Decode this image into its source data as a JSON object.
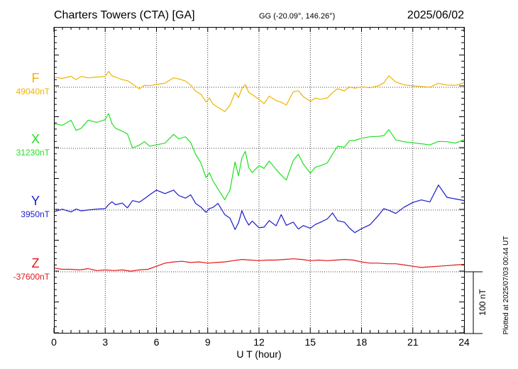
{
  "header": {
    "station": "Charters Towers (CTA)  [GA]",
    "coords": "GG (-20.09°, 146.26°)",
    "date": "2025/06/02"
  },
  "footer": {
    "plotted": "Plotted at 2025/07/03 00:44 UT",
    "scale_label": "100 nT"
  },
  "colors": {
    "F": "#f0b400",
    "X": "#22e022",
    "Y": "#1a1acc",
    "Z": "#e01818"
  },
  "chart_data": {
    "type": "line",
    "xlabel": "U T (hour)",
    "xlim": [
      0,
      24
    ],
    "xticks": [
      0,
      3,
      6,
      9,
      12,
      15,
      18,
      21,
      24
    ],
    "scale_nT": 100,
    "series": [
      {
        "key": "F",
        "name": "F",
        "baseline_label": "49040nT",
        "baseline": 49040,
        "x": [
          0,
          0.5,
          1,
          1.3,
          1.6,
          2,
          2.5,
          3,
          3.2,
          3.4,
          3.6,
          4,
          4.3,
          4.6,
          5,
          5.3,
          5.6,
          6,
          6.5,
          7,
          7.3,
          7.7,
          8,
          8.3,
          8.6,
          8.9,
          9.1,
          9.3,
          9.6,
          10,
          10.3,
          10.6,
          10.8,
          11,
          11.2,
          11.4,
          11.6,
          12,
          12.3,
          12.6,
          13,
          13.3,
          13.6,
          14,
          14.3,
          14.6,
          15,
          15.3,
          15.6,
          16,
          16.3,
          16.6,
          17,
          17.3,
          17.6,
          18,
          18.5,
          19,
          19.3,
          19.6,
          20,
          20.5,
          21,
          21.5,
          22,
          22.5,
          23,
          23.5,
          24
        ],
        "values": [
          49057,
          49055,
          49058,
          49052,
          49057,
          49055,
          49057,
          49058,
          49066,
          49058,
          49056,
          49052,
          49051,
          49046,
          49038,
          49043,
          49042,
          49044,
          49047,
          49056,
          49054,
          49050,
          49043,
          49033,
          49029,
          49017,
          49023,
          49013,
          49007,
          49000,
          49011,
          49032,
          49024,
          49038,
          49044,
          49031,
          49028,
          49021,
          49014,
          49026,
          49018,
          49015,
          49011,
          49033,
          49035,
          49025,
          49017,
          49022,
          49020,
          49023,
          49032,
          49038,
          49034,
          49040,
          49038,
          49041,
          49040,
          49043,
          49047,
          49058,
          49048,
          49044,
          49043,
          49042,
          49040,
          49046,
          49043,
          49043,
          49048
        ]
      },
      {
        "key": "X",
        "name": "X",
        "baseline_label": "31230nT",
        "baseline": 31230,
        "x": [
          0,
          0.5,
          1,
          1.3,
          1.6,
          2,
          2.5,
          3,
          3.2,
          3.4,
          3.6,
          4,
          4.3,
          4.6,
          5,
          5.3,
          5.6,
          6,
          6.5,
          7,
          7.3,
          7.7,
          8,
          8.3,
          8.6,
          8.9,
          9.1,
          9.3,
          9.6,
          10,
          10.3,
          10.6,
          10.8,
          11,
          11.2,
          11.4,
          11.6,
          12,
          12.3,
          12.6,
          13,
          13.3,
          13.6,
          14,
          14.3,
          14.6,
          15,
          15.3,
          15.6,
          16,
          16.3,
          16.6,
          17,
          17.3,
          17.6,
          18,
          18.5,
          19,
          19.3,
          19.6,
          20,
          20.5,
          21,
          21.5,
          22,
          22.5,
          23,
          23.5,
          24
        ],
        "values": [
          31270,
          31268,
          31276,
          31259,
          31262,
          31275,
          31272,
          31277,
          31287,
          31270,
          31262,
          31257,
          31253,
          31231,
          31236,
          31241,
          31233,
          31235,
          31238,
          31253,
          31246,
          31249,
          31239,
          31219,
          31206,
          31183,
          31191,
          31178,
          31164,
          31146,
          31162,
          31208,
          31186,
          31215,
          31225,
          31198,
          31190,
          31202,
          31198,
          31210,
          31196,
          31186,
          31178,
          31210,
          31221,
          31205,
          31190,
          31199,
          31201,
          31206,
          31221,
          31234,
          31232,
          31242,
          31242,
          31246,
          31249,
          31250,
          31251,
          31260,
          31243,
          31240,
          31239,
          31238,
          31236,
          31241,
          31240,
          31238,
          31244
        ]
      },
      {
        "key": "Y",
        "name": "Y",
        "baseline_label": "3950nT",
        "baseline": 3950,
        "x": [
          0,
          0.5,
          1,
          1.3,
          1.6,
          2,
          2.5,
          3,
          3.2,
          3.4,
          3.6,
          4,
          4.3,
          4.6,
          5,
          5.3,
          5.6,
          6,
          6.5,
          7,
          7.3,
          7.7,
          8,
          8.3,
          8.6,
          8.9,
          9.1,
          9.3,
          9.6,
          10,
          10.3,
          10.6,
          10.8,
          11,
          11.2,
          11.4,
          11.6,
          12,
          12.3,
          12.6,
          13,
          13.3,
          13.6,
          14,
          14.3,
          14.6,
          15,
          15.3,
          15.6,
          16,
          16.3,
          16.6,
          17,
          17.3,
          17.6,
          18,
          18.5,
          19,
          19.3,
          19.6,
          20,
          20.5,
          21,
          21.5,
          22,
          22.5,
          23,
          23.5,
          24
        ],
        "values": [
          3948,
          3952,
          3947,
          3951,
          3948,
          3950,
          3952,
          3953,
          3959,
          3963,
          3958,
          3961,
          3954,
          3966,
          3963,
          3968,
          3974,
          3982,
          3977,
          3983,
          3974,
          3969,
          3974,
          3960,
          3955,
          3947,
          3953,
          3954,
          3960,
          3942,
          3937,
          3919,
          3930,
          3949,
          3935,
          3925,
          3932,
          3922,
          3923,
          3933,
          3924,
          3942,
          3925,
          3931,
          3920,
          3925,
          3920,
          3926,
          3930,
          3936,
          3946,
          3933,
          3930,
          3920,
          3913,
          3920,
          3927,
          3942,
          3952,
          3949,
          3944,
          3955,
          3963,
          3967,
          3963,
          3990,
          3970,
          3968,
          3966
        ]
      },
      {
        "key": "Z",
        "name": "Z",
        "baseline_label": "-37600nT",
        "baseline": -37600,
        "x": [
          0,
          0.5,
          1,
          1.5,
          2,
          2.5,
          3,
          3.5,
          4,
          4.5,
          5,
          5.5,
          6,
          6.5,
          7,
          7.5,
          8,
          8.5,
          9,
          9.5,
          10,
          10.5,
          11,
          11.5,
          12,
          12.5,
          13,
          13.5,
          14,
          14.5,
          15,
          15.5,
          16,
          16.5,
          17,
          17.5,
          18,
          18.5,
          19,
          19.5,
          20,
          20.5,
          21,
          21.5,
          22,
          22.5,
          23,
          23.5,
          24
        ],
        "values": [
          -37594,
          -37596,
          -37596,
          -37597,
          -37595,
          -37598,
          -37597,
          -37598,
          -37597,
          -37599,
          -37597,
          -37596,
          -37591,
          -37586,
          -37584,
          -37583,
          -37585,
          -37584,
          -37586,
          -37585,
          -37584,
          -37582,
          -37580,
          -37581,
          -37582,
          -37581,
          -37581,
          -37580,
          -37579,
          -37580,
          -37582,
          -37581,
          -37582,
          -37581,
          -37580,
          -37581,
          -37584,
          -37586,
          -37586,
          -37587,
          -37587,
          -37589,
          -37591,
          -37593,
          -37592,
          -37591,
          -37590,
          -37589,
          -37588
        ]
      }
    ]
  }
}
